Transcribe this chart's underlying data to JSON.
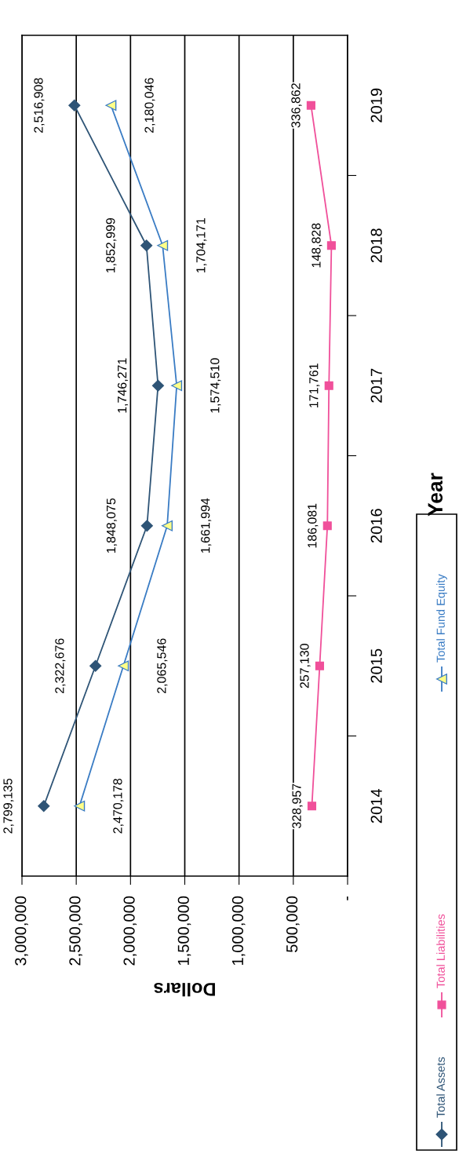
{
  "chart_data": {
    "type": "line",
    "orientation": "horizontal",
    "xlabel": "Dollars",
    "ylabel": "Year",
    "categories": [
      "2019",
      "2018",
      "2017",
      "2016",
      "2015",
      "2014"
    ],
    "series": [
      {
        "name": "Total Assets",
        "color": "#2e5476",
        "marker": "diamond",
        "values": [
          2516908,
          1852999,
          1746271,
          1848075,
          2322676,
          2799135
        ],
        "value_labels": [
          "2,516,908",
          "1,852,999",
          "1,746,271",
          "1,848,075",
          "2,322,676",
          "2,799,135"
        ]
      },
      {
        "name": "Total Liabilities",
        "color": "#f0509a",
        "marker": "square",
        "values": [
          336862,
          148828,
          171761,
          186081,
          257130,
          328957
        ],
        "value_labels": [
          "336,862",
          "148,828",
          "171,761",
          "186,081",
          "257,130",
          "328,957"
        ]
      },
      {
        "name": "Total Fund Equity",
        "color": "#3a7cc4",
        "marker": "triangle",
        "values": [
          2180046,
          1704171,
          1574510,
          1661994,
          2065546,
          2470178
        ],
        "value_labels": [
          "2,180,046",
          "1,704,171",
          "1,574,510",
          "1,661,994",
          "2,065,546",
          "2,470,178"
        ]
      }
    ],
    "xlim": [
      3000000,
      0
    ],
    "xticks": [
      {
        "value": 3000000,
        "label": "3,000,000"
      },
      {
        "value": 2500000,
        "label": "2,500,000"
      },
      {
        "value": 2000000,
        "label": "2,000,000"
      },
      {
        "value": 1500000,
        "label": "1,500,000"
      },
      {
        "value": 1000000,
        "label": "1,000,000"
      },
      {
        "value": 500000,
        "label": "500,000"
      },
      {
        "value": 0,
        "label": "-"
      }
    ],
    "grid": "x",
    "legend": "bottom",
    "line_style": "solid"
  }
}
